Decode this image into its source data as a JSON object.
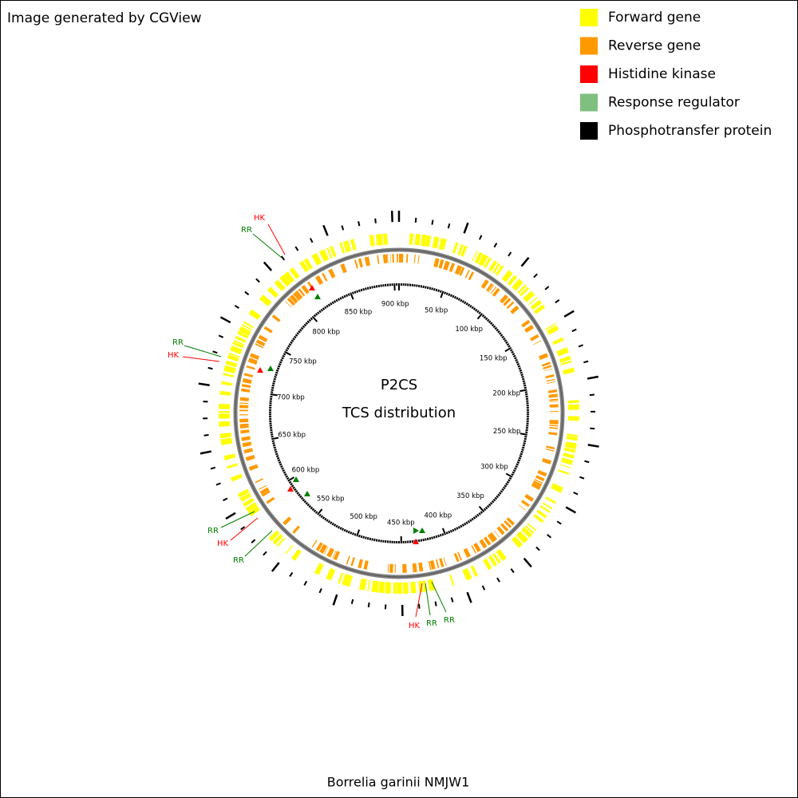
{
  "header": {
    "title": "Image generated by CGView"
  },
  "legend": [
    {
      "label": "Forward gene",
      "color": "#ffff00"
    },
    {
      "label": "Reverse gene",
      "color": "#ff9900"
    },
    {
      "label": "Histidine kinase",
      "color": "#ff0000"
    },
    {
      "label": "Response regulator",
      "color": "#7fbf7f"
    },
    {
      "label": "Phosphotransfer protein",
      "color": "#000000"
    }
  ],
  "map": {
    "title": "P2CS",
    "subtitle": "TCS distribution",
    "scale_labels": [
      "50 kbp",
      "100 kbp",
      "150 kbp",
      "200 kbp",
      "250 kbp",
      "300 kbp",
      "350 kbp",
      "400 kbp",
      "450 kbp",
      "500 kbp",
      "550 kbp",
      "600 kbp",
      "650 kbp",
      "700 kbp",
      "750 kbp",
      "800 kbp",
      "850 kbp",
      "900 kbp"
    ],
    "callouts": [
      {
        "text": "HK",
        "color": "#ff0000"
      },
      {
        "text": "RR",
        "color": "#008000"
      },
      {
        "text": "RR",
        "color": "#008000"
      },
      {
        "text": "HK",
        "color": "#ff0000"
      },
      {
        "text": "RR",
        "color": "#008000"
      },
      {
        "text": "HK",
        "color": "#ff0000"
      },
      {
        "text": "RR",
        "color": "#008000"
      },
      {
        "text": "HK",
        "color": "#ff0000"
      },
      {
        "text": "RR",
        "color": "#008000"
      },
      {
        "text": "RR",
        "color": "#008000"
      }
    ]
  },
  "footer": {
    "caption": "Borrelia garinii NMJW1"
  }
}
